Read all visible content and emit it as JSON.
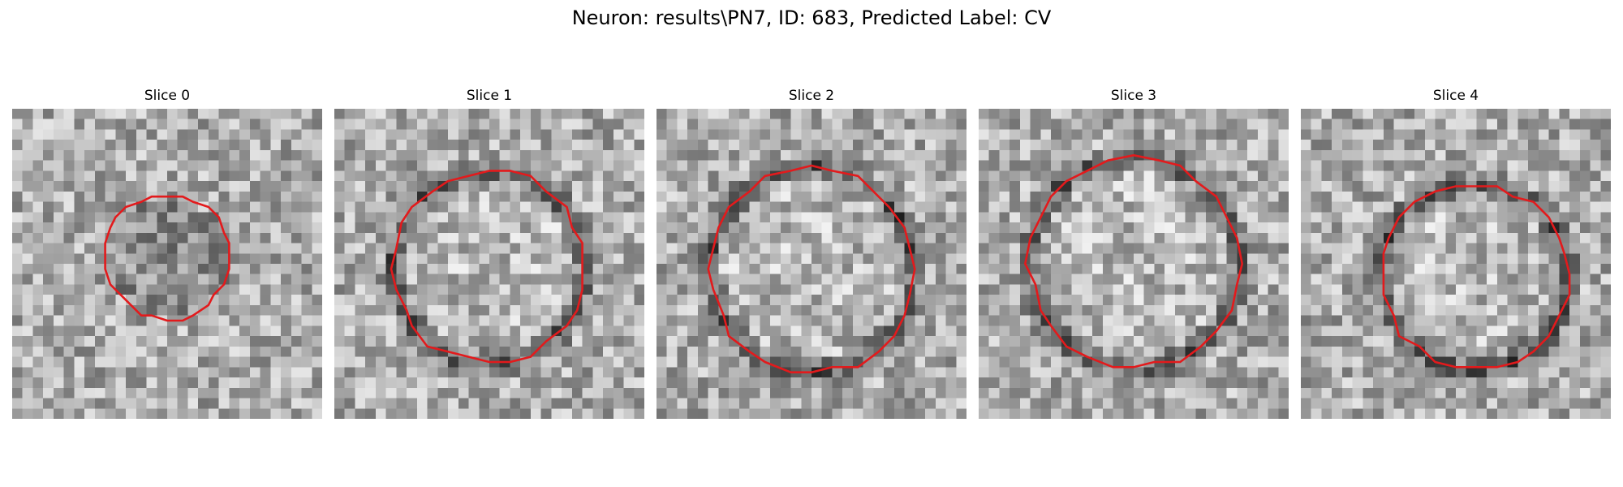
{
  "figure": {
    "title": "Neuron: results\\PN7, ID: 683, Predicted Label: CV",
    "outline_color": "#e31a1c"
  },
  "panels": [
    {
      "title": "Slice 0",
      "image": "grayscale-noise-tile",
      "outline": "red-polygon-outline"
    },
    {
      "title": "Slice 1",
      "image": "grayscale-noise-tile",
      "outline": "red-polygon-outline"
    },
    {
      "title": "Slice 2",
      "image": "grayscale-noise-tile",
      "outline": "red-polygon-outline"
    },
    {
      "title": "Slice 3",
      "image": "grayscale-noise-tile",
      "outline": "red-polygon-outline"
    },
    {
      "title": "Slice 4",
      "image": "grayscale-noise-tile",
      "outline": "red-polygon-outline"
    }
  ]
}
